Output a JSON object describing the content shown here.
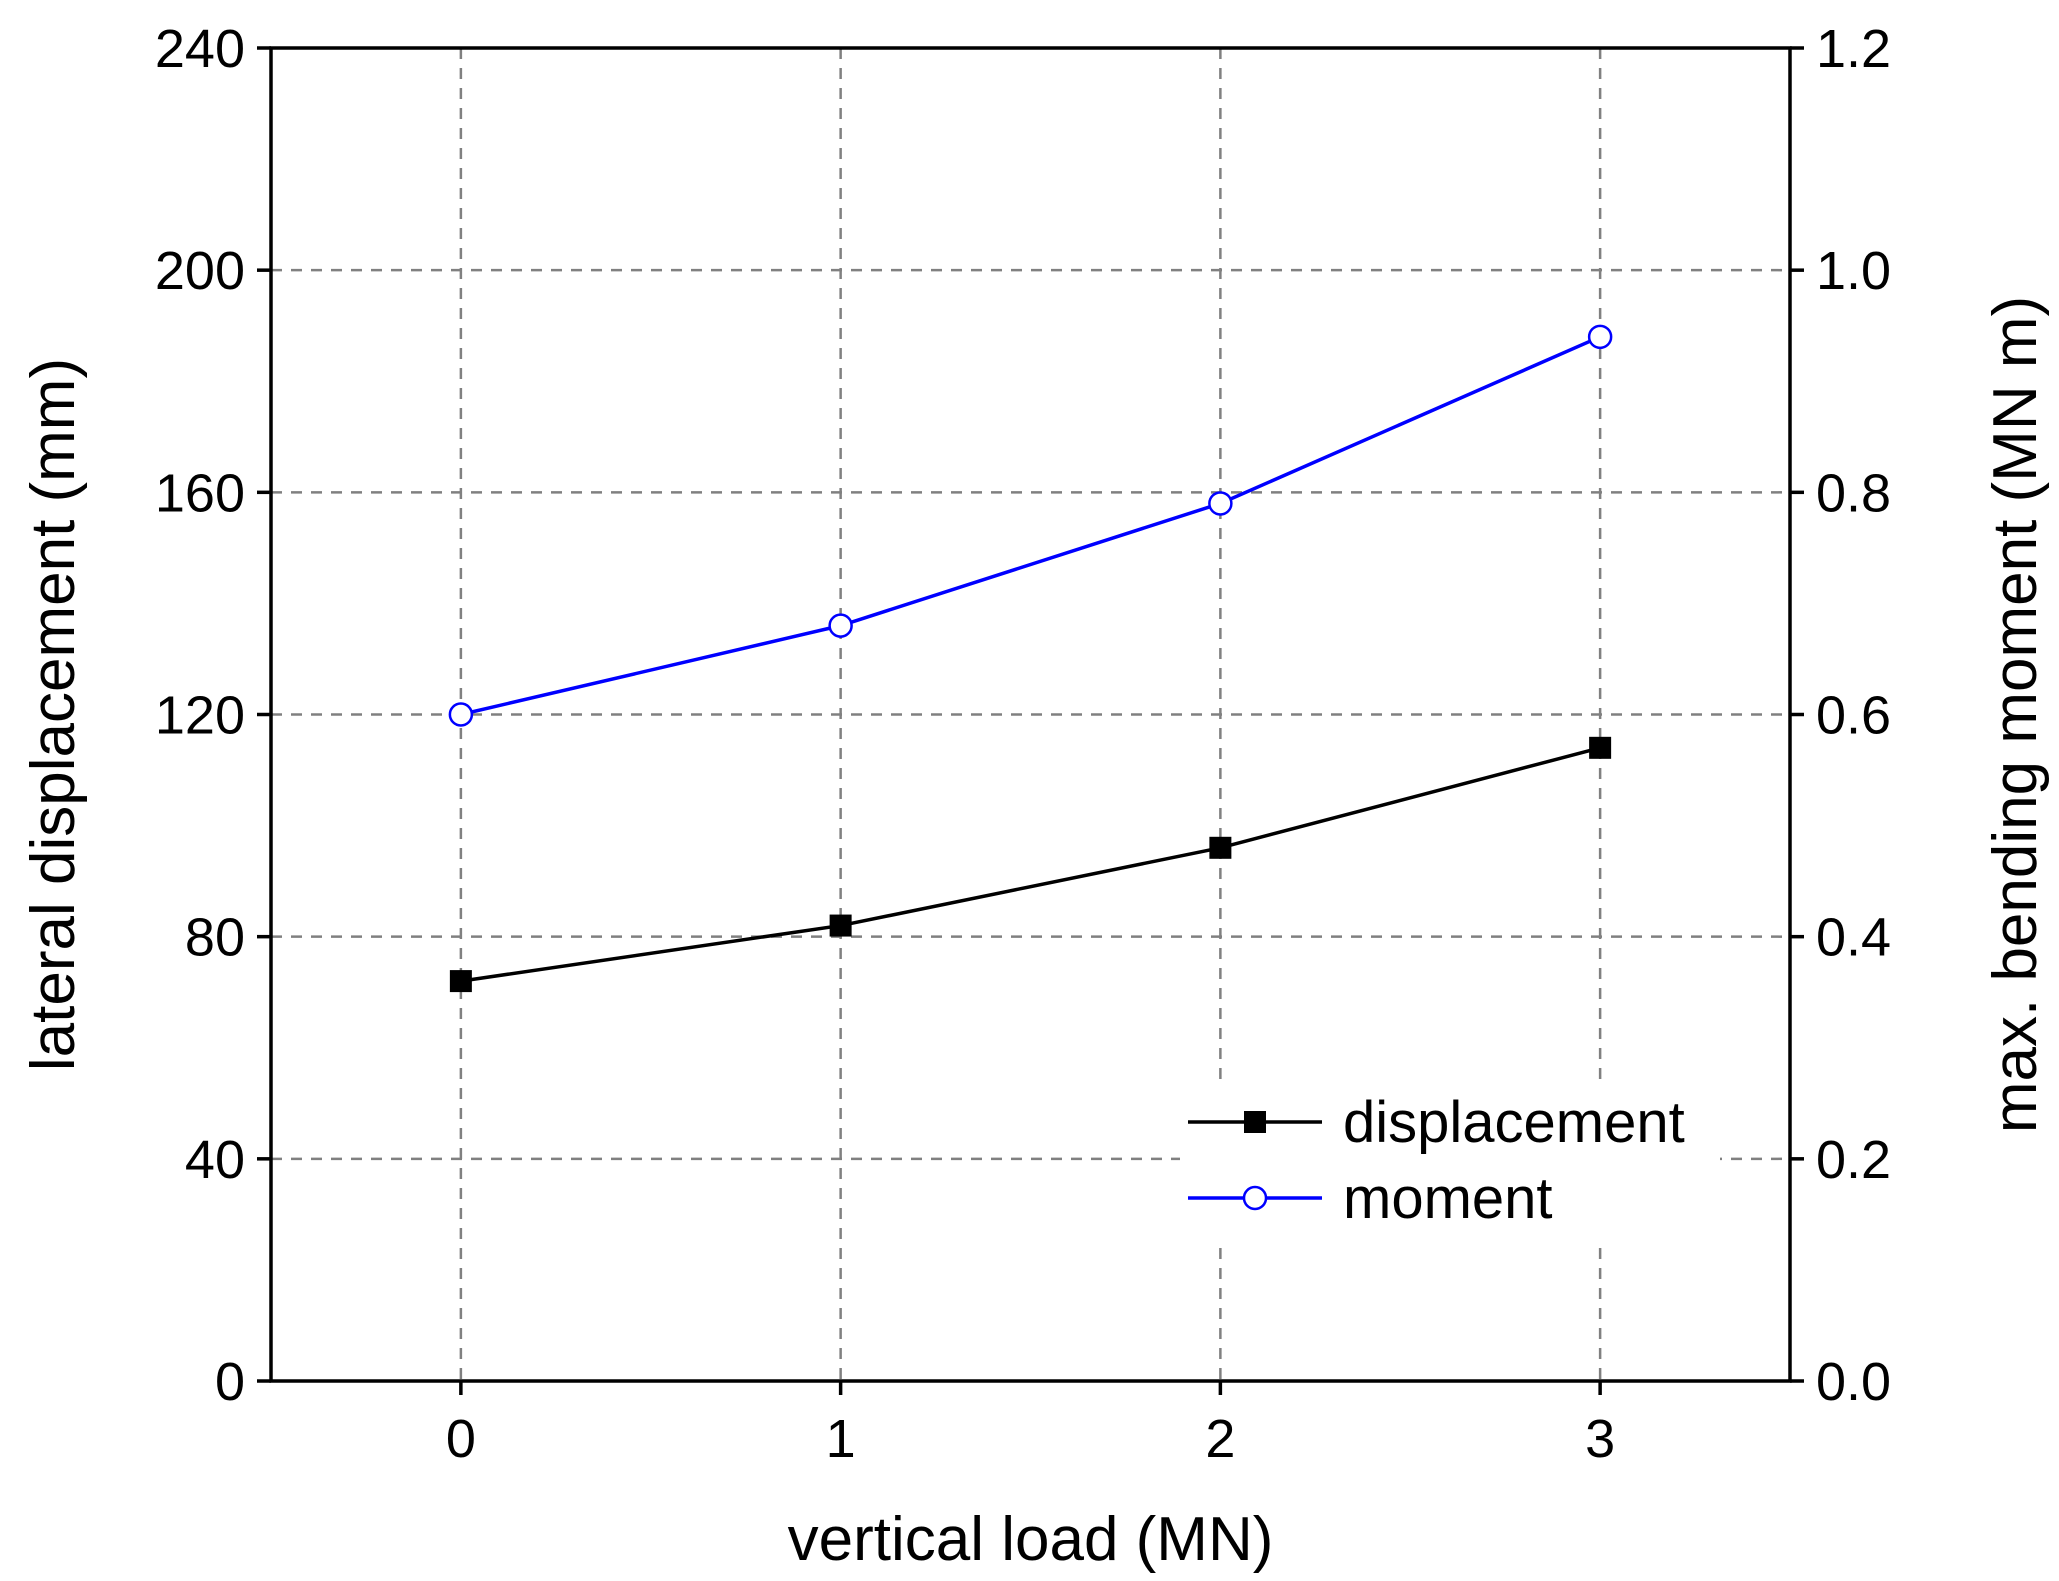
{
  "chart_data": {
    "type": "line",
    "title": "",
    "xlabel": "vertical load (MN)",
    "ylabel": "lateral displacement (mm)",
    "y2label": "max. bending moment (MN m)",
    "x": [
      0,
      1,
      2,
      3
    ],
    "xlim": [
      -0.5,
      3.5
    ],
    "xticks": [
      "0",
      "1",
      "2",
      "3"
    ],
    "ylim": [
      0,
      240
    ],
    "yticks": [
      "0",
      "40",
      "80",
      "120",
      "160",
      "200",
      "240"
    ],
    "y2lim": [
      0,
      1.2
    ],
    "y2ticks": [
      "0.0",
      "0.2",
      "0.4",
      "0.6",
      "0.8",
      "1.0",
      "1.2"
    ],
    "grid": true,
    "legend_position": "lower-right",
    "series": [
      {
        "name": "displacement",
        "axis": "left",
        "values": [
          72,
          82,
          96,
          114
        ],
        "color": "#000000",
        "marker": "filled-square"
      },
      {
        "name": "moment",
        "axis": "right",
        "values": [
          0.6,
          0.68,
          0.79,
          0.94
        ],
        "color": "#0000ff",
        "marker": "open-circle"
      }
    ]
  }
}
